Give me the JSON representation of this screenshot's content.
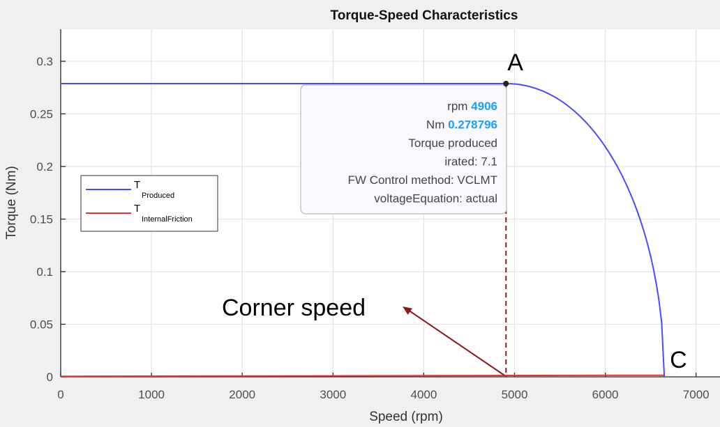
{
  "chart_data": {
    "type": "line",
    "title": "Torque-Speed Characteristics",
    "xlabel": "Speed (rpm)",
    "ylabel": "Torque (Nm)",
    "xlim": [
      0,
      7250
    ],
    "ylim": [
      0,
      0.33
    ],
    "grid": true,
    "x_ticks": [
      0,
      1000,
      2000,
      3000,
      4000,
      5000,
      6000,
      7000
    ],
    "y_ticks": [
      0,
      0.05,
      0.1,
      0.15,
      0.2,
      0.25,
      0.3
    ],
    "x_tick_labels": [
      "0",
      "1000",
      "2000",
      "3000",
      "4000",
      "5000",
      "6000",
      "7000"
    ],
    "y_tick_labels": [
      "0",
      "0.05",
      "0.1",
      "0.15",
      "0.2",
      "0.25",
      "0.3"
    ],
    "legend_position": "left-middle",
    "series": [
      {
        "name": "T_Produced",
        "legend_main": "T",
        "legend_sub": "Produced",
        "color": "#4a4aff",
        "x": [
          0,
          4906,
          5100,
          5300,
          5500,
          5700,
          5900,
          6100,
          6300,
          6450,
          6550,
          6620,
          6650
        ],
        "y": [
          0.2788,
          0.2788,
          0.276,
          0.268,
          0.255,
          0.235,
          0.208,
          0.172,
          0.125,
          0.082,
          0.045,
          0.015,
          0.0
        ]
      },
      {
        "name": "T_InternalFriction",
        "legend_main": "T",
        "legend_sub": "InternalFriction",
        "color": "#e83030",
        "x": [
          0,
          6650
        ],
        "y": [
          0.0005,
          0.0015
        ]
      }
    ],
    "annotations": [
      {
        "label": "A",
        "x": 4906,
        "y": 0.2788
      },
      {
        "label": "C",
        "x": 6650,
        "y": 0.0
      },
      {
        "label": "Corner speed",
        "arrow_to": {
          "x": 4906,
          "y": 0.0
        }
      }
    ],
    "corner_speed_line": {
      "x": 4906,
      "color": "#8b1a1a"
    }
  },
  "datatip": {
    "rows": [
      {
        "key": "rpm",
        "value": "4906"
      },
      {
        "key": "Nm",
        "value": "0.278796"
      },
      {
        "text": "Torque produced"
      },
      {
        "text": "irated: 7.1"
      },
      {
        "text": "FW Control method: VCLMT"
      },
      {
        "text": "voltageEquation: actual"
      }
    ]
  }
}
